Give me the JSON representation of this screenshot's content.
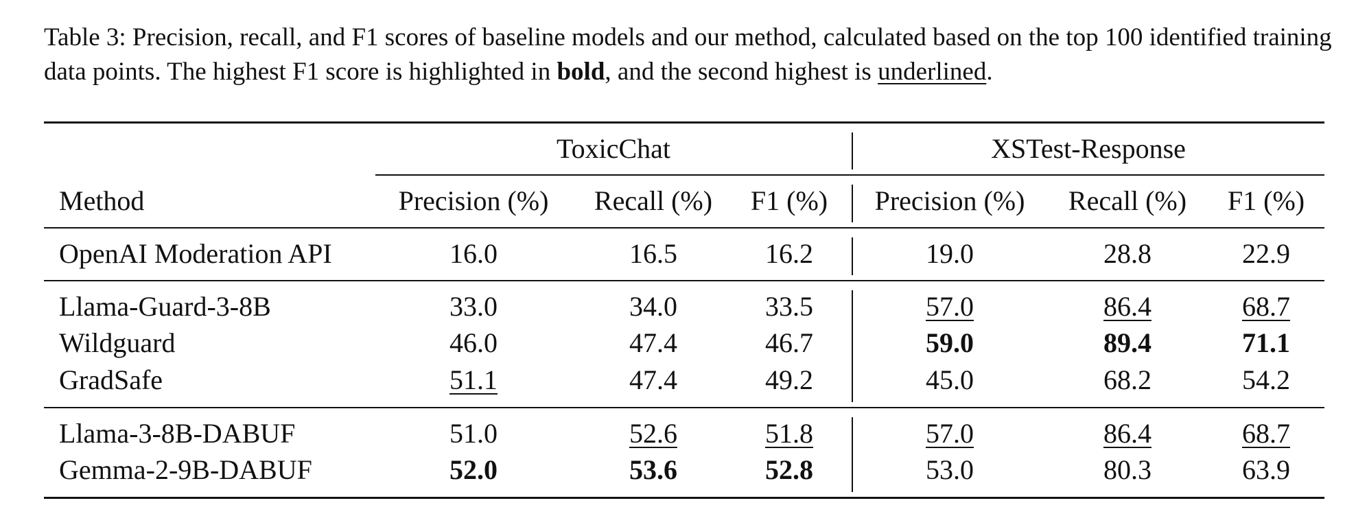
{
  "caption": {
    "prefix": "Table 3: Precision, recall, and F1 scores of baseline models and our method, calculated based on the top 100 identified training data points. The highest F1 score is highlighted in ",
    "bold_word": "bold",
    "middle": ", and the second highest is ",
    "underlined_word": "underlined",
    "suffix": "."
  },
  "table": {
    "method_header": "Method",
    "groups": [
      "ToxicChat",
      "XSTest-Response"
    ],
    "subheaders": [
      "Precision (%)",
      "Recall (%)",
      "F1 (%)",
      "Precision (%)",
      "Recall (%)",
      "F1 (%)"
    ],
    "rows": [
      {
        "method": "OpenAI Moderation API",
        "values": [
          "16.0",
          "16.5",
          "16.2",
          "19.0",
          "28.8",
          "22.9"
        ]
      },
      {
        "method": "Llama-Guard-3-8B",
        "values": [
          "33.0",
          "34.0",
          "33.5",
          "57.0",
          "86.4",
          "68.7"
        ]
      },
      {
        "method": "Wildguard",
        "values": [
          "46.0",
          "47.4",
          "46.7",
          "59.0",
          "89.4",
          "71.1"
        ]
      },
      {
        "method": "GradSafe",
        "values": [
          "51.1",
          "47.4",
          "49.2",
          "45.0",
          "68.2",
          "54.2"
        ]
      },
      {
        "method": "Llama-3-8B-DABUF",
        "values": [
          "51.0",
          "52.6",
          "51.8",
          "57.0",
          "86.4",
          "68.7"
        ]
      },
      {
        "method": "Gemma-2-9B-DABUF",
        "values": [
          "52.0",
          "53.6",
          "52.8",
          "53.0",
          "80.3",
          "63.9"
        ]
      }
    ]
  }
}
